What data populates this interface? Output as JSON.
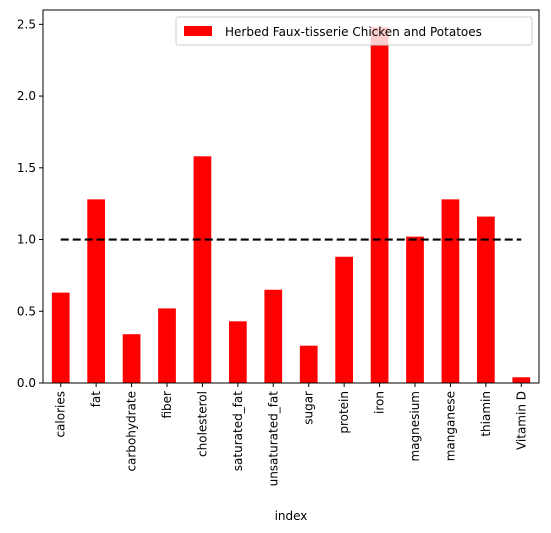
{
  "chart_data": {
    "type": "bar",
    "categories": [
      "calories",
      "fat",
      "carbohydrate",
      "fiber",
      "cholesterol",
      "saturated_fat",
      "unsaturated_fat",
      "sugar",
      "protein",
      "iron",
      "magnesium",
      "manganese",
      "thiamin",
      "Vitamin D"
    ],
    "series": [
      {
        "name": "Herbed Faux-tisserie Chicken and Potatoes",
        "values": [
          0.63,
          1.28,
          0.34,
          0.52,
          1.58,
          0.43,
          0.65,
          0.26,
          0.88,
          2.48,
          1.02,
          1.28,
          1.16,
          0.04
        ],
        "color": "#ff0000"
      }
    ],
    "reference_line": {
      "y": 1.0,
      "style": "dashed",
      "color": "#000000"
    },
    "xlabel": "index",
    "ylabel": "",
    "ylim": [
      0,
      2.6
    ],
    "yticks": [
      0.0,
      0.5,
      1.0,
      1.5,
      2.0,
      2.5
    ],
    "ytick_labels": [
      "0.0",
      "0.5",
      "1.0",
      "1.5",
      "2.0",
      "2.5"
    ],
    "grid": false,
    "legend_position": "top-right"
  }
}
